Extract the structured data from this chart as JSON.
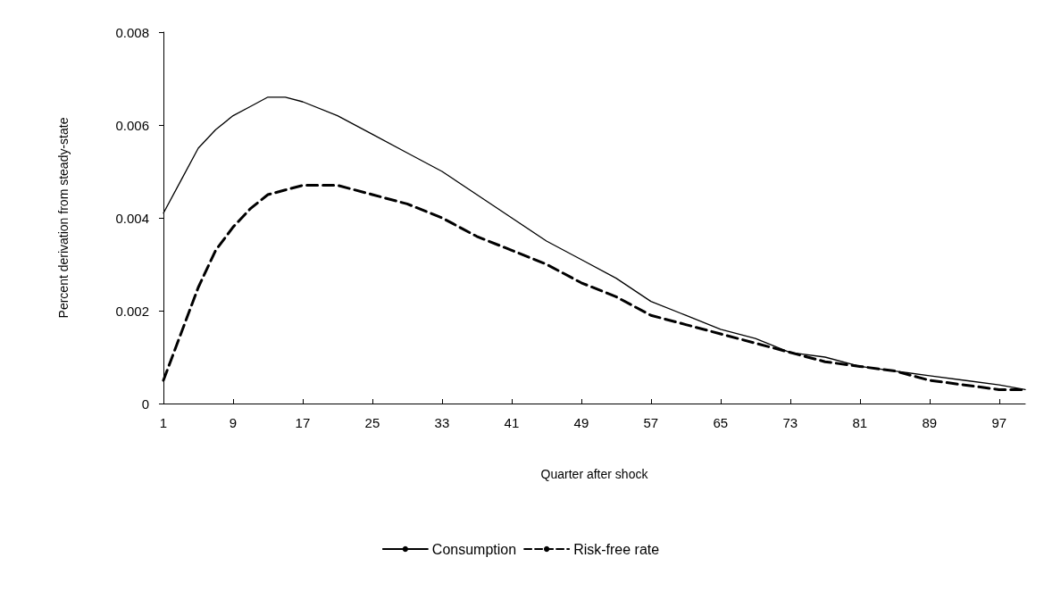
{
  "chart_data": {
    "type": "line",
    "xlabel": "Quarter after shock",
    "ylabel": "Percent derivation from steady-state",
    "x": [
      1,
      3,
      5,
      7,
      9,
      11,
      13,
      15,
      17,
      21,
      25,
      29,
      33,
      37,
      41,
      45,
      49,
      53,
      57,
      61,
      65,
      69,
      73,
      77,
      81,
      85,
      89,
      93,
      97,
      100
    ],
    "series": [
      {
        "name": "Consumption",
        "color": "#000000",
        "line_style": "solid",
        "values": [
          0.0041,
          0.0048,
          0.0055,
          0.0059,
          0.0062,
          0.0064,
          0.0066,
          0.0066,
          0.0065,
          0.0062,
          0.0058,
          0.0054,
          0.005,
          0.0045,
          0.004,
          0.0035,
          0.0031,
          0.0027,
          0.0022,
          0.0019,
          0.0016,
          0.0014,
          0.0011,
          0.001,
          0.0008,
          0.0007,
          0.0006,
          0.0005,
          0.0004,
          0.0003
        ]
      },
      {
        "name": "Risk-free rate",
        "color": "#000000",
        "line_style": "dashed",
        "values": [
          0.0005,
          0.0015,
          0.0025,
          0.0033,
          0.0038,
          0.0042,
          0.0045,
          0.0046,
          0.0047,
          0.0047,
          0.0045,
          0.0043,
          0.004,
          0.0036,
          0.0033,
          0.003,
          0.0026,
          0.0023,
          0.0019,
          0.0017,
          0.0015,
          0.0013,
          0.0011,
          0.0009,
          0.0008,
          0.0007,
          0.0005,
          0.0004,
          0.0003,
          0.0003
        ]
      }
    ],
    "xlim": [
      1,
      100
    ],
    "xticks": [
      1,
      9,
      17,
      25,
      33,
      41,
      49,
      57,
      65,
      73,
      81,
      89,
      97
    ],
    "ylim": [
      0,
      0.008
    ],
    "yticks": [
      0,
      0.002,
      0.004,
      0.006,
      0.008
    ],
    "grid": false,
    "legend": "bottom",
    "marker": "none"
  }
}
